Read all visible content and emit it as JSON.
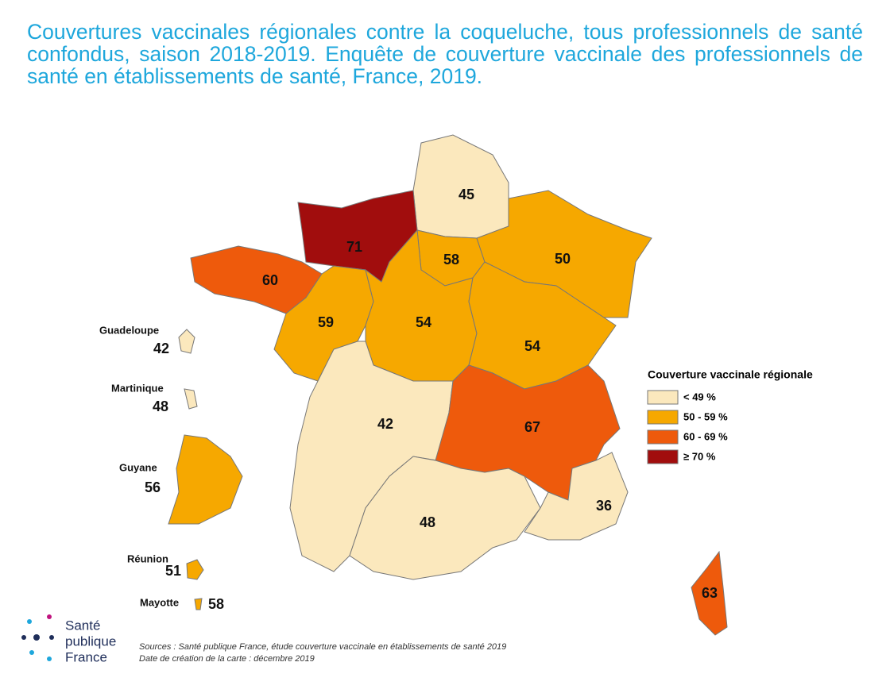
{
  "title": "Couvertures vaccinales régionales contre la coqueluche, tous professionnels de santé confondus, saison 2018-2019. Enquête de couverture vaccinale des professionnels de santé en établissements de santé, France, 2019.",
  "regions": [
    {
      "value": 45,
      "color": "#fbe8bd"
    },
    {
      "value": 71,
      "color": "#a10d0d"
    },
    {
      "value": 58,
      "color": "#f6a800"
    },
    {
      "value": 50,
      "color": "#f6a800"
    },
    {
      "value": 60,
      "color": "#ee5a0c"
    },
    {
      "value": 59,
      "color": "#f6a800"
    },
    {
      "value": 54,
      "color": "#f6a800"
    },
    {
      "value": 54,
      "color": "#f6a800"
    },
    {
      "value": 42,
      "color": "#fbe8bd"
    },
    {
      "value": 67,
      "color": "#ee5a0c"
    },
    {
      "value": 48,
      "color": "#fbe8bd"
    },
    {
      "value": 36,
      "color": "#fbe8bd"
    },
    {
      "value": 63,
      "color": "#ee5a0c"
    }
  ],
  "overseas": [
    {
      "name": "Guadeloupe",
      "value": 42,
      "color": "#fbe8bd"
    },
    {
      "name": "Martinique",
      "value": 48,
      "color": "#fbe8bd"
    },
    {
      "name": "Guyane",
      "value": 56,
      "color": "#f6a800"
    },
    {
      "name": "Réunion",
      "value": 51,
      "color": "#f6a800"
    },
    {
      "name": "Mayotte",
      "value": 58,
      "color": "#f6a800"
    }
  ],
  "legend": {
    "title": "Couverture vaccinale régionale",
    "items": [
      {
        "label": "< 49 %",
        "color": "#fbe8bd"
      },
      {
        "label": "50 - 59 %",
        "color": "#f6a800"
      },
      {
        "label": "60 - 69 %",
        "color": "#ee5a0c"
      },
      {
        "label": "≥ 70 %",
        "color": "#a10d0d"
      }
    ]
  },
  "logo": {
    "line1": "Santé",
    "line2": "publique",
    "line3": "France"
  },
  "sources": "Sources : Santé publique France, étude couverture vaccinale en établissements de santé 2019",
  "date": "Date de création de la carte : décembre 2019"
}
